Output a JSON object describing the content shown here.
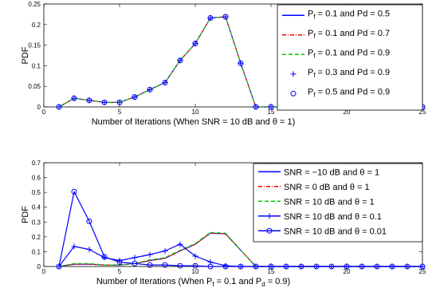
{
  "chart_data": [
    {
      "type": "line",
      "xlabel": "Number of Iterations (When SNR = 10 dB and θ = 1)",
      "ylabel": "PDF",
      "xlim": [
        0,
        25
      ],
      "ylim": [
        0,
        0.25
      ],
      "xticks": [
        0,
        5,
        10,
        15,
        20,
        25
      ],
      "yticks": [
        0,
        0.05,
        0.1,
        0.15,
        0.2,
        0.25
      ],
      "grid": false,
      "legend_position": "top-right",
      "x": [
        1,
        2,
        3,
        4,
        5,
        6,
        7,
        8,
        9,
        10,
        11,
        12,
        13,
        14,
        15,
        16,
        17,
        18,
        19,
        20,
        21,
        22,
        23,
        24,
        25
      ],
      "series": [
        {
          "name": "P_f = 0.1 and Pd = 0.5",
          "label_parts": [
            "P",
            "f",
            " = 0.1 and Pd = 0.5"
          ],
          "color": "#0000ff",
          "style": "solid",
          "marker": "none",
          "values": [
            0,
            0.021,
            0.016,
            0.011,
            0.011,
            0.024,
            0.042,
            0.059,
            0.113,
            0.154,
            0.216,
            0.219,
            0.106,
            0,
            0,
            0,
            0,
            0,
            0,
            0,
            0,
            0,
            0,
            0,
            0
          ]
        },
        {
          "name": "P_f = 0.1 and Pd = 0.7",
          "label_parts": [
            "P",
            "f",
            " = 0.1 and Pd = 0.7"
          ],
          "color": "#ff0000",
          "style": "dashdot",
          "marker": "none",
          "values": [
            0,
            0.021,
            0.016,
            0.011,
            0.011,
            0.024,
            0.042,
            0.059,
            0.113,
            0.154,
            0.216,
            0.219,
            0.106,
            0,
            0,
            0,
            0,
            0,
            0,
            0,
            0,
            0,
            0,
            0,
            0
          ]
        },
        {
          "name": "P_f = 0.1 and Pd = 0.9",
          "label_parts": [
            "P",
            "f",
            " = 0.1 and Pd = 0.9"
          ],
          "color": "#00cc00",
          "style": "dashed",
          "marker": "none",
          "values": [
            0,
            0.021,
            0.016,
            0.011,
            0.011,
            0.024,
            0.042,
            0.059,
            0.113,
            0.154,
            0.216,
            0.219,
            0.106,
            0,
            0,
            0,
            0,
            0,
            0,
            0,
            0,
            0,
            0,
            0,
            0
          ]
        },
        {
          "name": "P_f = 0.3 and Pd = 0.9",
          "label_parts": [
            "P",
            "f",
            " = 0.3 and Pd = 0.9"
          ],
          "color": "#0000ff",
          "style": "none",
          "marker": "plus",
          "values": [
            0,
            0.021,
            0.016,
            0.011,
            0.011,
            0.024,
            0.042,
            0.059,
            0.113,
            0.154,
            0.216,
            0.219,
            0.106,
            0,
            0,
            0,
            0,
            0,
            0,
            0,
            0,
            0,
            0,
            0,
            0
          ]
        },
        {
          "name": "P_f = 0.5 and Pd = 0.9",
          "label_parts": [
            "P",
            "f",
            " = 0.5 and Pd = 0.9"
          ],
          "color": "#0000ff",
          "style": "none",
          "marker": "circle",
          "values": [
            0,
            0.021,
            0.016,
            0.011,
            0.011,
            0.024,
            0.042,
            0.059,
            0.113,
            0.154,
            0.216,
            0.219,
            0.106,
            0,
            0,
            0,
            0,
            0,
            0,
            0,
            0,
            0,
            0,
            0,
            0
          ]
        }
      ]
    },
    {
      "type": "line",
      "xlabel_parts": [
        "Number of Iterations (When P",
        "f",
        " = 0.1 and P",
        "d",
        " = 0.9)"
      ],
      "ylabel": "PDF",
      "xlim": [
        0,
        25
      ],
      "ylim": [
        0,
        0.7
      ],
      "xticks": [
        0,
        5,
        10,
        15,
        20,
        25
      ],
      "yticks": [
        0,
        0.1,
        0.2,
        0.3,
        0.4,
        0.5,
        0.6,
        0.7
      ],
      "grid": false,
      "legend_position": "top-right",
      "x": [
        1,
        2,
        3,
        4,
        5,
        6,
        7,
        8,
        9,
        10,
        11,
        12,
        13,
        14,
        15,
        16,
        17,
        18,
        19,
        20,
        21,
        22,
        23,
        24,
        25
      ],
      "series": [
        {
          "name": "SNR = −10 dB and θ = 1",
          "color": "#0000ff",
          "style": "solid",
          "marker": "none",
          "values": [
            0,
            0.015,
            0.015,
            0.01,
            0.01,
            0.02,
            0.04,
            0.055,
            0.105,
            0.15,
            0.225,
            0.22,
            0.11,
            0,
            0,
            0,
            0,
            0,
            0,
            0,
            0,
            0,
            0,
            0,
            0
          ]
        },
        {
          "name": "SNR = 0 dB and θ = 1",
          "color": "#ff0000",
          "style": "dashdot",
          "marker": "none",
          "values": [
            0,
            0.015,
            0.015,
            0.01,
            0.01,
            0.02,
            0.04,
            0.055,
            0.105,
            0.15,
            0.225,
            0.22,
            0.11,
            0,
            0,
            0,
            0,
            0,
            0,
            0,
            0,
            0,
            0,
            0,
            0
          ]
        },
        {
          "name": "SNR = 10 dB and θ = 1",
          "color": "#00cc00",
          "style": "dashed",
          "marker": "none",
          "values": [
            0,
            0.02,
            0.02,
            0.01,
            0.01,
            0.02,
            0.045,
            0.06,
            0.11,
            0.155,
            0.23,
            0.225,
            0.11,
            0,
            0,
            0,
            0,
            0,
            0,
            0,
            0,
            0,
            0,
            0,
            0
          ]
        },
        {
          "name": "SNR = 10 dB and θ = 0.1",
          "color": "#0000ff",
          "style": "solid",
          "marker": "plus",
          "values": [
            0,
            0.135,
            0.115,
            0.06,
            0.04,
            0.06,
            0.08,
            0.105,
            0.15,
            0.07,
            0.03,
            0.005,
            0,
            0,
            0,
            0,
            0,
            0,
            0,
            0,
            0,
            0,
            0,
            0,
            0
          ]
        },
        {
          "name": "SNR = 10 dB and θ = 0.01",
          "color": "#0000ff",
          "style": "solid",
          "marker": "circle",
          "values": [
            0,
            0.505,
            0.305,
            0.065,
            0.03,
            0.02,
            0.01,
            0.01,
            0.005,
            0.005,
            0,
            0,
            0,
            0,
            0,
            0,
            0,
            0,
            0,
            0,
            0,
            0,
            0,
            0,
            0
          ]
        }
      ]
    }
  ]
}
